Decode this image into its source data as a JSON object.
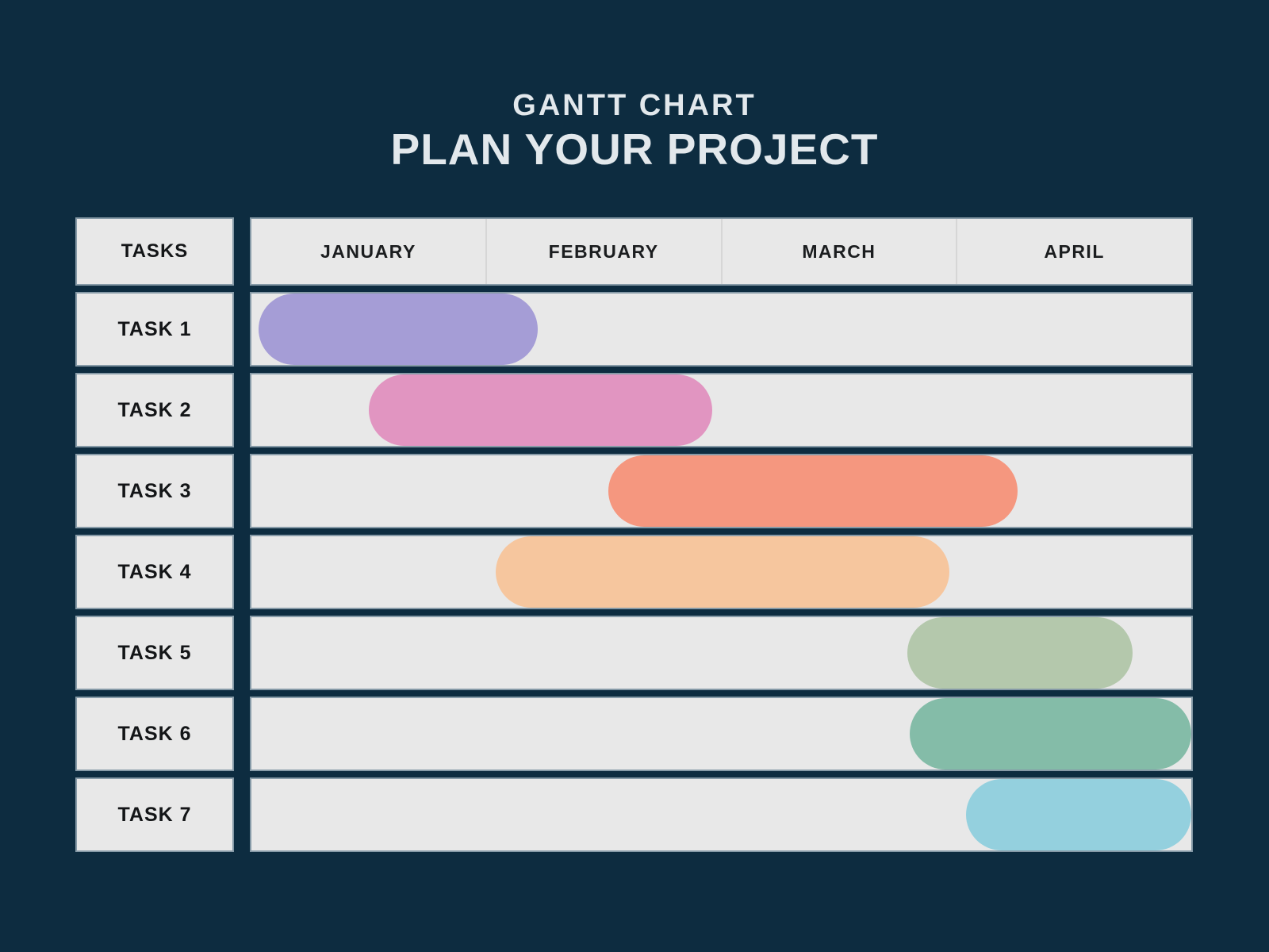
{
  "title": {
    "line1": "GANTT CHART",
    "line2": "PLAN YOUR PROJECT"
  },
  "table": {
    "tasks_header": "TASKS",
    "months": [
      "JANUARY",
      "FEBRUARY",
      "MARCH",
      "APRIL"
    ]
  },
  "chart_data": {
    "type": "gantt",
    "title": "GANTT CHART — PLAN YOUR PROJECT",
    "x_axis": {
      "unit": "months",
      "tick_labels": [
        "JANUARY",
        "FEBRUARY",
        "MARCH",
        "APRIL"
      ],
      "range": [
        0,
        4
      ],
      "note": "0 = start of January, 4 = end of April"
    },
    "tasks": [
      {
        "label": "TASK 1",
        "start": 0.03,
        "end": 1.22,
        "color": "#a59dd6"
      },
      {
        "label": "TASK 2",
        "start": 0.5,
        "end": 1.96,
        "color": "#e195c1"
      },
      {
        "label": "TASK 3",
        "start": 1.52,
        "end": 3.26,
        "color": "#f5977f"
      },
      {
        "label": "TASK 4",
        "start": 1.04,
        "end": 2.97,
        "color": "#f6c69e"
      },
      {
        "label": "TASK 5",
        "start": 2.79,
        "end": 3.75,
        "color": "#b4c8ac"
      },
      {
        "label": "TASK 6",
        "start": 2.8,
        "end": 4.0,
        "color": "#84bca8"
      },
      {
        "label": "TASK 7",
        "start": 3.04,
        "end": 4.0,
        "color": "#94d0de"
      }
    ],
    "layout": {
      "legend": "none",
      "grid": "month dividers in header only"
    },
    "colors": {
      "background": "#0d2c40",
      "row_background": "#e8e8e8",
      "label_text": "#131517",
      "title_text": "#e2e8ec"
    }
  }
}
